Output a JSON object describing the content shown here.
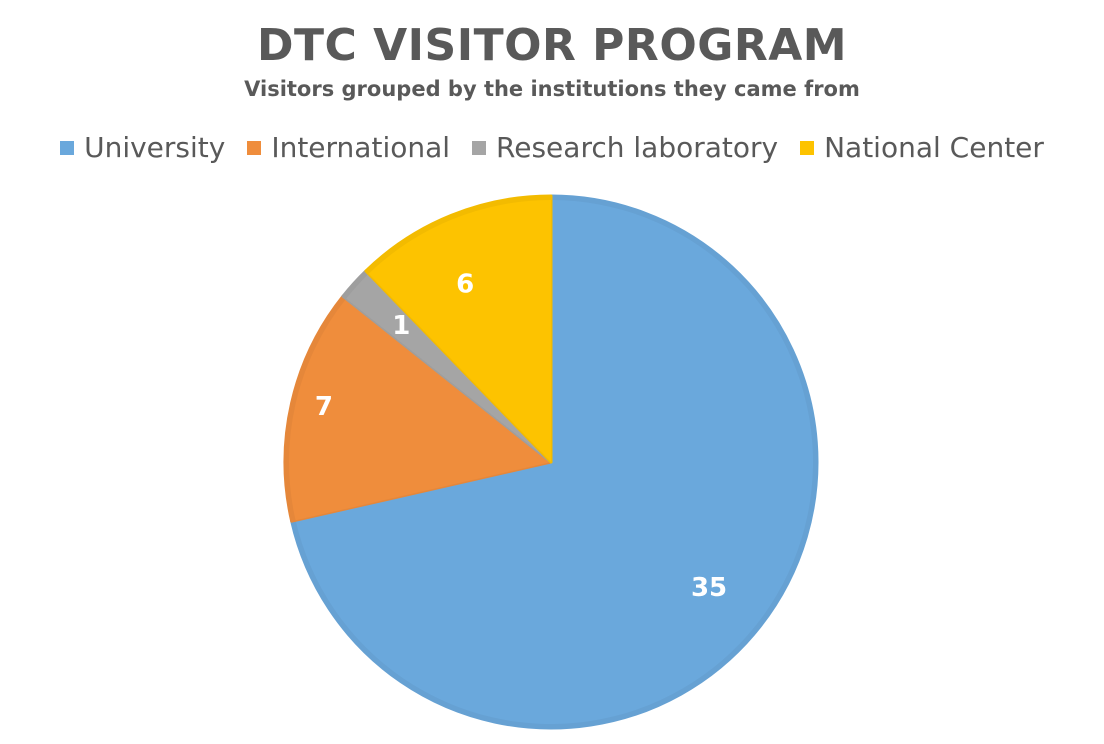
{
  "chart_data": {
    "type": "pie",
    "title": "DTC VISITOR PROGRAM",
    "subtitle": "Visitors grouped by the institutions they came from",
    "categories": [
      "University",
      "International",
      "Research laboratory",
      "National Center"
    ],
    "values": [
      35,
      7,
      1,
      6
    ],
    "colors": [
      "#6aa8dc",
      "#ef8d3c",
      "#a5a5a5",
      "#fdc300"
    ],
    "data_labels": [
      "35",
      "7",
      "1",
      "6"
    ],
    "legend": "top",
    "start_angle_deg": 0,
    "direction": "clockwise"
  }
}
